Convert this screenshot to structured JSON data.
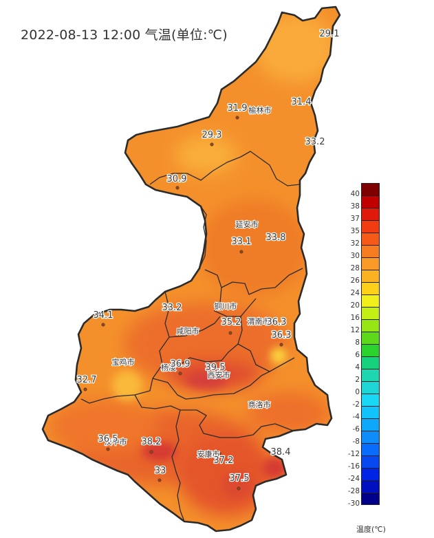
{
  "title": "2022-08-13 12:00 气温(单位:℃)",
  "cities": [
    {
      "name": "榆林市"
    },
    {
      "name": "延安市"
    },
    {
      "name": "铜川市"
    },
    {
      "name": "咸阳市"
    },
    {
      "name": "渭南市"
    },
    {
      "name": "宝鸡市"
    },
    {
      "name": "杨凌"
    },
    {
      "name": "西安市"
    },
    {
      "name": "商洛市"
    },
    {
      "name": "汉中市"
    },
    {
      "name": "安康市"
    }
  ],
  "values": [
    "29.1",
    "31.9",
    "31.4",
    "29.3",
    "33.2",
    "30.9",
    "33.1",
    "33.8",
    "33.2",
    "34.1",
    "35.2",
    "36.3",
    "36.3",
    "36.9",
    "39.5",
    "32.7",
    "36.5",
    "38.2",
    "33",
    "37.2",
    "37.5",
    "38.4"
  ],
  "legend": {
    "unit_label": "温度(℃)",
    "ticks": [
      "40",
      "38",
      "37",
      "35",
      "32",
      "30",
      "28",
      "26",
      "24",
      "20",
      "16",
      "12",
      "8",
      "6",
      "4",
      "2",
      "0",
      "-2",
      "-4",
      "-6",
      "-8",
      "-12",
      "-16",
      "-24",
      "-28",
      "-30"
    ],
    "colors": [
      "#7f0000",
      "#c00000",
      "#e01a0a",
      "#f03c10",
      "#f55a18",
      "#f77c22",
      "#fa9a28",
      "#fbb222",
      "#fdd01a",
      "#f1ef1c",
      "#c4ef14",
      "#95e614",
      "#5ed81a",
      "#2bd22e",
      "#16d27c",
      "#1ed6b0",
      "#1ed6d6",
      "#18d8f5",
      "#12c2fa",
      "#0ea8fa",
      "#0e8cfa",
      "#0a6cfa",
      "#0848f0",
      "#0024e6",
      "#0010c0",
      "#00008a"
    ]
  },
  "colors": {
    "base": "#f4902b",
    "hot": "#e4572a",
    "hotter": "#d84030",
    "warm_spot": "#fcc233",
    "border": "#2b2b2b"
  }
}
